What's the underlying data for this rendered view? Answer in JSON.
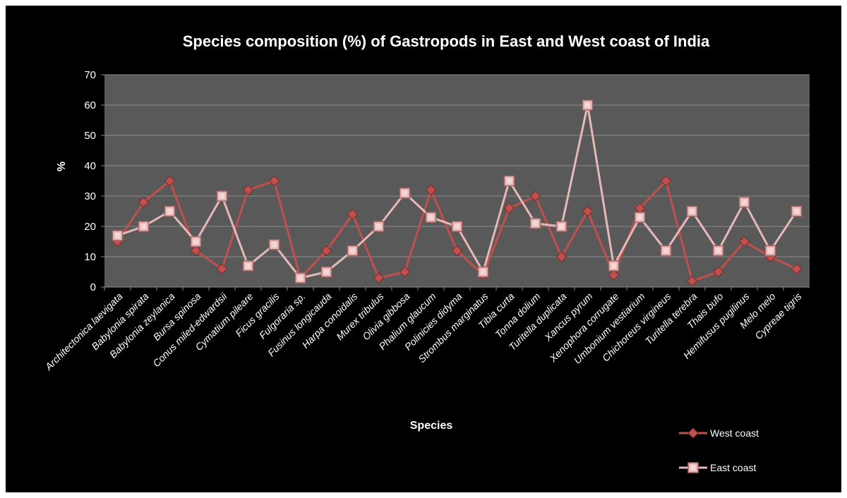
{
  "chart_data": {
    "type": "line",
    "title": "Species composition (%) of Gastropods in East and West coast of India",
    "xlabel": "Species",
    "ylabel": "%",
    "ylim": [
      0,
      70
    ],
    "yticks": [
      0,
      10,
      20,
      30,
      40,
      50,
      60,
      70
    ],
    "grid": true,
    "legend_position": "bottom-right",
    "categories": [
      "Architectonica laevigata",
      "Babylonia spirata",
      "Babylonia zeylanica",
      "Bursa spinosa",
      "Conus miled-edwardsii",
      "Cymatium pileare",
      "Ficus  gracilis",
      "Fulgoraria sp.",
      "Fusinus longicauda",
      "Harpa conoidalis",
      "Murex tribulus",
      "Olivia gibbosa",
      "Phalium glaucum",
      "Polinicies didyma",
      "Strombus marginatus",
      "Tibia curta",
      "Tonna dolium",
      "Turitella duplicata",
      "Xancus pyrum",
      "Xenophora corrugate",
      "Umbonium vestiarium",
      "Chichoreus virgineus",
      "Turitella terebra",
      "Thais bufo",
      "Hemifusus pugilinus",
      "Melo melo",
      "Cypreae tigris"
    ],
    "series": [
      {
        "name": "West coast",
        "color": "#c0504d",
        "marker": "diamond",
        "values": [
          15,
          28,
          35,
          12,
          6,
          32,
          35,
          3,
          12,
          24,
          3,
          5,
          32,
          12,
          4,
          26,
          30,
          10,
          25,
          4,
          26,
          35,
          2,
          5,
          15,
          10,
          6
        ]
      },
      {
        "name": "East coast",
        "color": "#e6b9b8",
        "marker": "square",
        "values": [
          17,
          20,
          25,
          15,
          30,
          7,
          14,
          3,
          5,
          12,
          20,
          31,
          23,
          20,
          5,
          35,
          21,
          20,
          60,
          7,
          23,
          12,
          25,
          12,
          28,
          12,
          25
        ]
      }
    ]
  },
  "colors": {
    "background": "#000000",
    "plot_area": "#595959",
    "gridline": "#8c8c8c",
    "text": "#ffffff"
  }
}
